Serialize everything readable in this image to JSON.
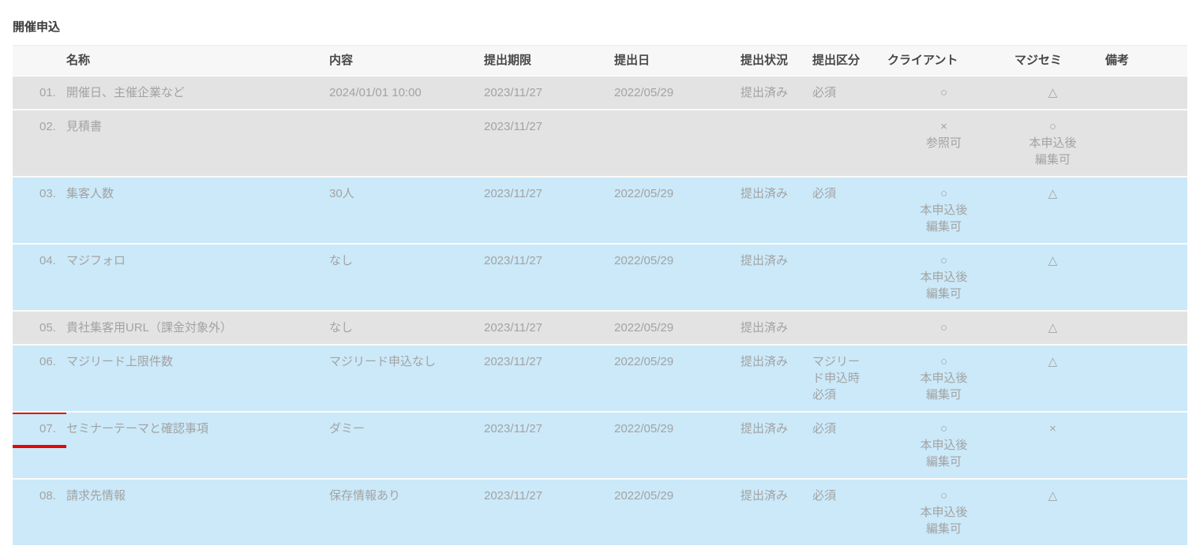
{
  "page": {
    "title": "開催申込"
  },
  "colors": {
    "row_gray": "#e3e3e3",
    "row_blue": "#cbe9f9",
    "header_bg": "#f7f7f7",
    "highlight_border": "#e60505",
    "text_muted": "#a3a3a3",
    "text_header": "#474747"
  },
  "table": {
    "columns": [
      {
        "key": "num",
        "label": ""
      },
      {
        "key": "name",
        "label": "名称"
      },
      {
        "key": "content",
        "label": "内容"
      },
      {
        "key": "deadline",
        "label": "提出期限"
      },
      {
        "key": "submit_date",
        "label": "提出日"
      },
      {
        "key": "status",
        "label": "提出状況"
      },
      {
        "key": "category",
        "label": "提出区分"
      },
      {
        "key": "client",
        "label": "クライアント"
      },
      {
        "key": "majisemi",
        "label": "マジセミ"
      },
      {
        "key": "note",
        "label": "備考"
      }
    ],
    "rows": [
      {
        "num": "01.",
        "name": "開催日、主催企業など",
        "content": "2024/01/01 10:00",
        "deadline": "2023/11/27",
        "submit_date": "2022/05/29",
        "status": "提出済み",
        "category": "必須",
        "client": "○",
        "majisemi": "△",
        "note": "",
        "tone": "gray",
        "highlighted": false
      },
      {
        "num": "02.",
        "name": "見積書",
        "content": "",
        "deadline": "2023/11/27",
        "submit_date": "",
        "status": "",
        "category": "",
        "client": "×\n参照可",
        "majisemi": "○\n本申込後\n編集可",
        "note": "",
        "tone": "gray",
        "highlighted": false
      },
      {
        "num": "03.",
        "name": "集客人数",
        "content": "30人",
        "deadline": "2023/11/27",
        "submit_date": "2022/05/29",
        "status": "提出済み",
        "category": "必須",
        "client": "○\n本申込後\n編集可",
        "majisemi": "△",
        "note": "",
        "tone": "blue",
        "highlighted": false
      },
      {
        "num": "04.",
        "name": "マジフォロ",
        "content": "なし",
        "deadline": "2023/11/27",
        "submit_date": "2022/05/29",
        "status": "提出済み",
        "category": "",
        "client": "○\n本申込後\n編集可",
        "majisemi": "△",
        "note": "",
        "tone": "blue",
        "highlighted": false
      },
      {
        "num": "05.",
        "name": "貴社集客用URL（課金対象外）",
        "content": "なし",
        "deadline": "2023/11/27",
        "submit_date": "2022/05/29",
        "status": "提出済み",
        "category": "",
        "client": "○",
        "majisemi": "△",
        "note": "",
        "tone": "gray",
        "highlighted": false
      },
      {
        "num": "06.",
        "name": "マジリード上限件数",
        "content": "マジリード申込なし",
        "deadline": "2023/11/27",
        "submit_date": "2022/05/29",
        "status": "提出済み",
        "category": "マジリード申込時必須",
        "client": "○\n本申込後\n編集可",
        "majisemi": "△",
        "note": "",
        "tone": "blue",
        "highlighted": false
      },
      {
        "num": "07.",
        "name": "セミナーテーマと確認事項",
        "content": "ダミー",
        "deadline": "2023/11/27",
        "submit_date": "2022/05/29",
        "status": "提出済み",
        "category": "必須",
        "client": "○\n本申込後\n編集可",
        "majisemi": "×",
        "note": "",
        "tone": "blue",
        "highlighted": true
      },
      {
        "num": "08.",
        "name": "請求先情報",
        "content": "保存情報あり",
        "deadline": "2023/11/27",
        "submit_date": "2022/05/29",
        "status": "提出済み",
        "category": "必須",
        "client": "○\n本申込後\n編集可",
        "majisemi": "△",
        "note": "",
        "tone": "blue",
        "highlighted": false
      }
    ]
  }
}
